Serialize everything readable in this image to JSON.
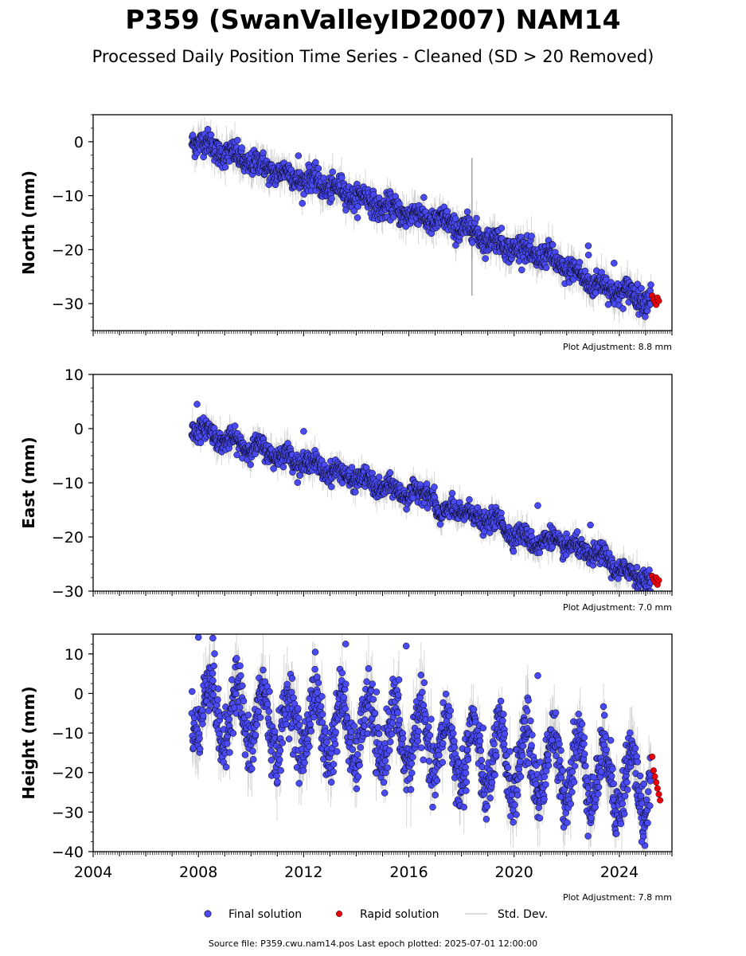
{
  "title": "P359 (SwanValleyID2007) NAM14",
  "subtitle": "Processed Daily Position Time Series - Cleaned (SD > 20 Removed)",
  "legend": {
    "final": "Final solution",
    "rapid": "Rapid solution",
    "std": "Std. Dev."
  },
  "footer": "Source file: P359.cwu.nam14.pos  Last epoch plotted: 2025-07-01 12:00:00",
  "colors": {
    "final": "#4a4af4",
    "rapid": "#e8000b",
    "std": "#808080",
    "marker_edge": "#000000"
  },
  "chart_data": [
    {
      "type": "scatter",
      "ylabel": "North (mm)",
      "adjustment": "Plot Adjustment: 8.8 mm",
      "xlim": [
        2004.0,
        2026.0
      ],
      "ylim": [
        -35,
        5
      ],
      "yticks": [
        "0",
        "−10",
        "−20",
        "−30"
      ],
      "ytick_values": [
        0,
        -10,
        -20,
        -30
      ],
      "grid": false,
      "series": [
        {
          "name": "Final solution",
          "x": [
            2007.75,
            2008.0,
            2008.5,
            2009.0,
            2009.5,
            2010.0,
            2010.5,
            2011.0,
            2011.5,
            2012.0,
            2012.5,
            2013.0,
            2013.5,
            2014.0,
            2014.5,
            2015.0,
            2015.5,
            2016.0,
            2016.5,
            2017.0,
            2017.5,
            2018.0,
            2018.5,
            2019.0,
            2019.5,
            2020.0,
            2020.5,
            2021.0,
            2021.5,
            2022.0,
            2022.5,
            2023.0,
            2023.5,
            2024.0,
            2024.5,
            2025.0
          ],
          "y": [
            0.5,
            0.0,
            -1.0,
            -2.0,
            -3.0,
            -3.8,
            -4.8,
            -5.5,
            -6.3,
            -7.0,
            -7.5,
            -8.5,
            -9.3,
            -10.0,
            -11.0,
            -12.0,
            -12.8,
            -13.3,
            -14.0,
            -14.5,
            -15.2,
            -15.8,
            -16.8,
            -18.0,
            -19.0,
            -19.5,
            -20.5,
            -21.0,
            -22.0,
            -23.5,
            -24.8,
            -26.2,
            -27.0,
            -27.8,
            -28.3,
            -29.0
          ],
          "noise": 1.1,
          "std_range": 2.5
        },
        {
          "name": "Rapid solution",
          "x": [
            2025.25,
            2025.3,
            2025.35,
            2025.4,
            2025.45,
            2025.5
          ],
          "y": [
            -28.5,
            -29.2,
            -29.8,
            -30.2,
            -28.9,
            -29.5
          ]
        }
      ],
      "outliers": [
        {
          "x": 2011.8,
          "y": -2.6
        },
        {
          "x": 2022.82,
          "y": -19.3
        },
        {
          "x": 2022.83,
          "y": -21.0
        },
        {
          "x": 2023.8,
          "y": -22.5
        }
      ],
      "spike": {
        "x": 2018.4,
        "ylow": -28.5,
        "yhigh": -3.0
      }
    },
    {
      "type": "scatter",
      "ylabel": "East (mm)",
      "adjustment": "Plot Adjustment: 7.0 mm",
      "xlim": [
        2004.0,
        2026.0
      ],
      "ylim": [
        -30,
        10
      ],
      "yticks": [
        "10",
        "0",
        "−10",
        "−20",
        "−30"
      ],
      "ytick_values": [
        10,
        0,
        -10,
        -20,
        -30
      ],
      "grid": false,
      "series": [
        {
          "name": "Final solution",
          "x": [
            2007.75,
            2008.0,
            2008.5,
            2009.0,
            2009.5,
            2010.0,
            2010.5,
            2011.0,
            2011.5,
            2012.0,
            2012.5,
            2013.0,
            2013.5,
            2014.0,
            2014.5,
            2015.0,
            2015.5,
            2016.0,
            2016.5,
            2016.9,
            2017.2,
            2017.6,
            2018.0,
            2018.5,
            2019.0,
            2019.5,
            2020.0,
            2020.5,
            2021.0,
            2021.5,
            2022.0,
            2022.5,
            2023.0,
            2023.5,
            2024.0,
            2024.5,
            2025.0
          ],
          "y": [
            0.3,
            0.0,
            -1.0,
            -2.0,
            -2.8,
            -3.3,
            -4.0,
            -4.8,
            -5.5,
            -6.2,
            -6.8,
            -7.8,
            -8.5,
            -9.0,
            -10.0,
            -10.8,
            -11.5,
            -12.0,
            -12.2,
            -11.5,
            -17.5,
            -14.2,
            -15.5,
            -16.2,
            -17.0,
            -17.5,
            -19.5,
            -20.5,
            -21.0,
            -20.5,
            -21.5,
            -22.5,
            -23.0,
            -24.0,
            -26.0,
            -27.0,
            -27.5
          ],
          "noise": 0.9,
          "std_range": 2.2
        },
        {
          "name": "Rapid solution",
          "x": [
            2025.25,
            2025.3,
            2025.35,
            2025.4,
            2025.45,
            2025.5
          ],
          "y": [
            -27.2,
            -27.8,
            -28.3,
            -27.5,
            -28.8,
            -28.0
          ]
        }
      ],
      "outliers": [
        {
          "x": 2007.95,
          "y": 4.5
        },
        {
          "x": 2012.0,
          "y": -0.5
        },
        {
          "x": 2020.9,
          "y": -14.2
        },
        {
          "x": 2022.9,
          "y": -17.8
        }
      ],
      "spike": null
    },
    {
      "type": "scatter",
      "ylabel": "Height (mm)",
      "adjustment": "Plot Adjustment: 7.8 mm",
      "xlim": [
        2004.0,
        2026.0
      ],
      "ylim": [
        -40,
        15
      ],
      "yticks": [
        "10",
        "0",
        "−10",
        "−20",
        "−30",
        "−40"
      ],
      "ytick_values": [
        10,
        0,
        -10,
        -20,
        -30,
        -40
      ],
      "xticks": [
        "2004",
        "2008",
        "2012",
        "2016",
        "2020",
        "2024"
      ],
      "xtick_values": [
        2004,
        2008,
        2012,
        2016,
        2020,
        2024
      ],
      "grid": false,
      "series": [
        {
          "name": "Final solution",
          "x": [
            2007.75,
            2008.0,
            2008.5,
            2009.0,
            2009.5,
            2010.0,
            2010.5,
            2011.0,
            2011.5,
            2012.0,
            2012.5,
            2013.0,
            2013.5,
            2014.0,
            2014.5,
            2015.0,
            2015.5,
            2016.0,
            2016.5,
            2017.0,
            2017.5,
            2018.0,
            2018.5,
            2019.0,
            2019.5,
            2020.0,
            2020.5,
            2021.0,
            2021.5,
            2022.0,
            2022.5,
            2023.0,
            2023.5,
            2024.0,
            2024.5,
            2025.0
          ],
          "y": [
            -3.0,
            -2.0,
            -4.0,
            -6.0,
            -5.0,
            -6.5,
            -7.0,
            -8.0,
            -9.0,
            -7.0,
            -8.0,
            -8.5,
            -9.0,
            -10.0,
            -9.5,
            -10.0,
            -11.0,
            -11.0,
            -12.0,
            -13.0,
            -14.0,
            -15.0,
            -16.0,
            -17.0,
            -17.0,
            -17.5,
            -17.5,
            -18.0,
            -18.5,
            -18.0,
            -19.0,
            -19.5,
            -21.0,
            -22.0,
            -23.0,
            -23.0
          ],
          "seasonal_amplitude": 8.0,
          "noise": 3.8,
          "std_range": 6.5
        },
        {
          "name": "Rapid solution",
          "x": [
            2025.25,
            2025.3,
            2025.35,
            2025.4,
            2025.45,
            2025.5,
            2025.55
          ],
          "y": [
            -16.0,
            -19.5,
            -21.0,
            -22.5,
            -24.0,
            -25.5,
            -27.0
          ]
        }
      ],
      "outliers": [
        {
          "x": 2008.0,
          "y": 14.2
        },
        {
          "x": 2008.55,
          "y": 14.0
        },
        {
          "x": 2013.6,
          "y": 12.5
        },
        {
          "x": 2015.9,
          "y": 12.0
        },
        {
          "x": 2020.9,
          "y": 4.5
        },
        {
          "x": 2024.85,
          "y": -37.5
        }
      ],
      "spike": null
    }
  ]
}
